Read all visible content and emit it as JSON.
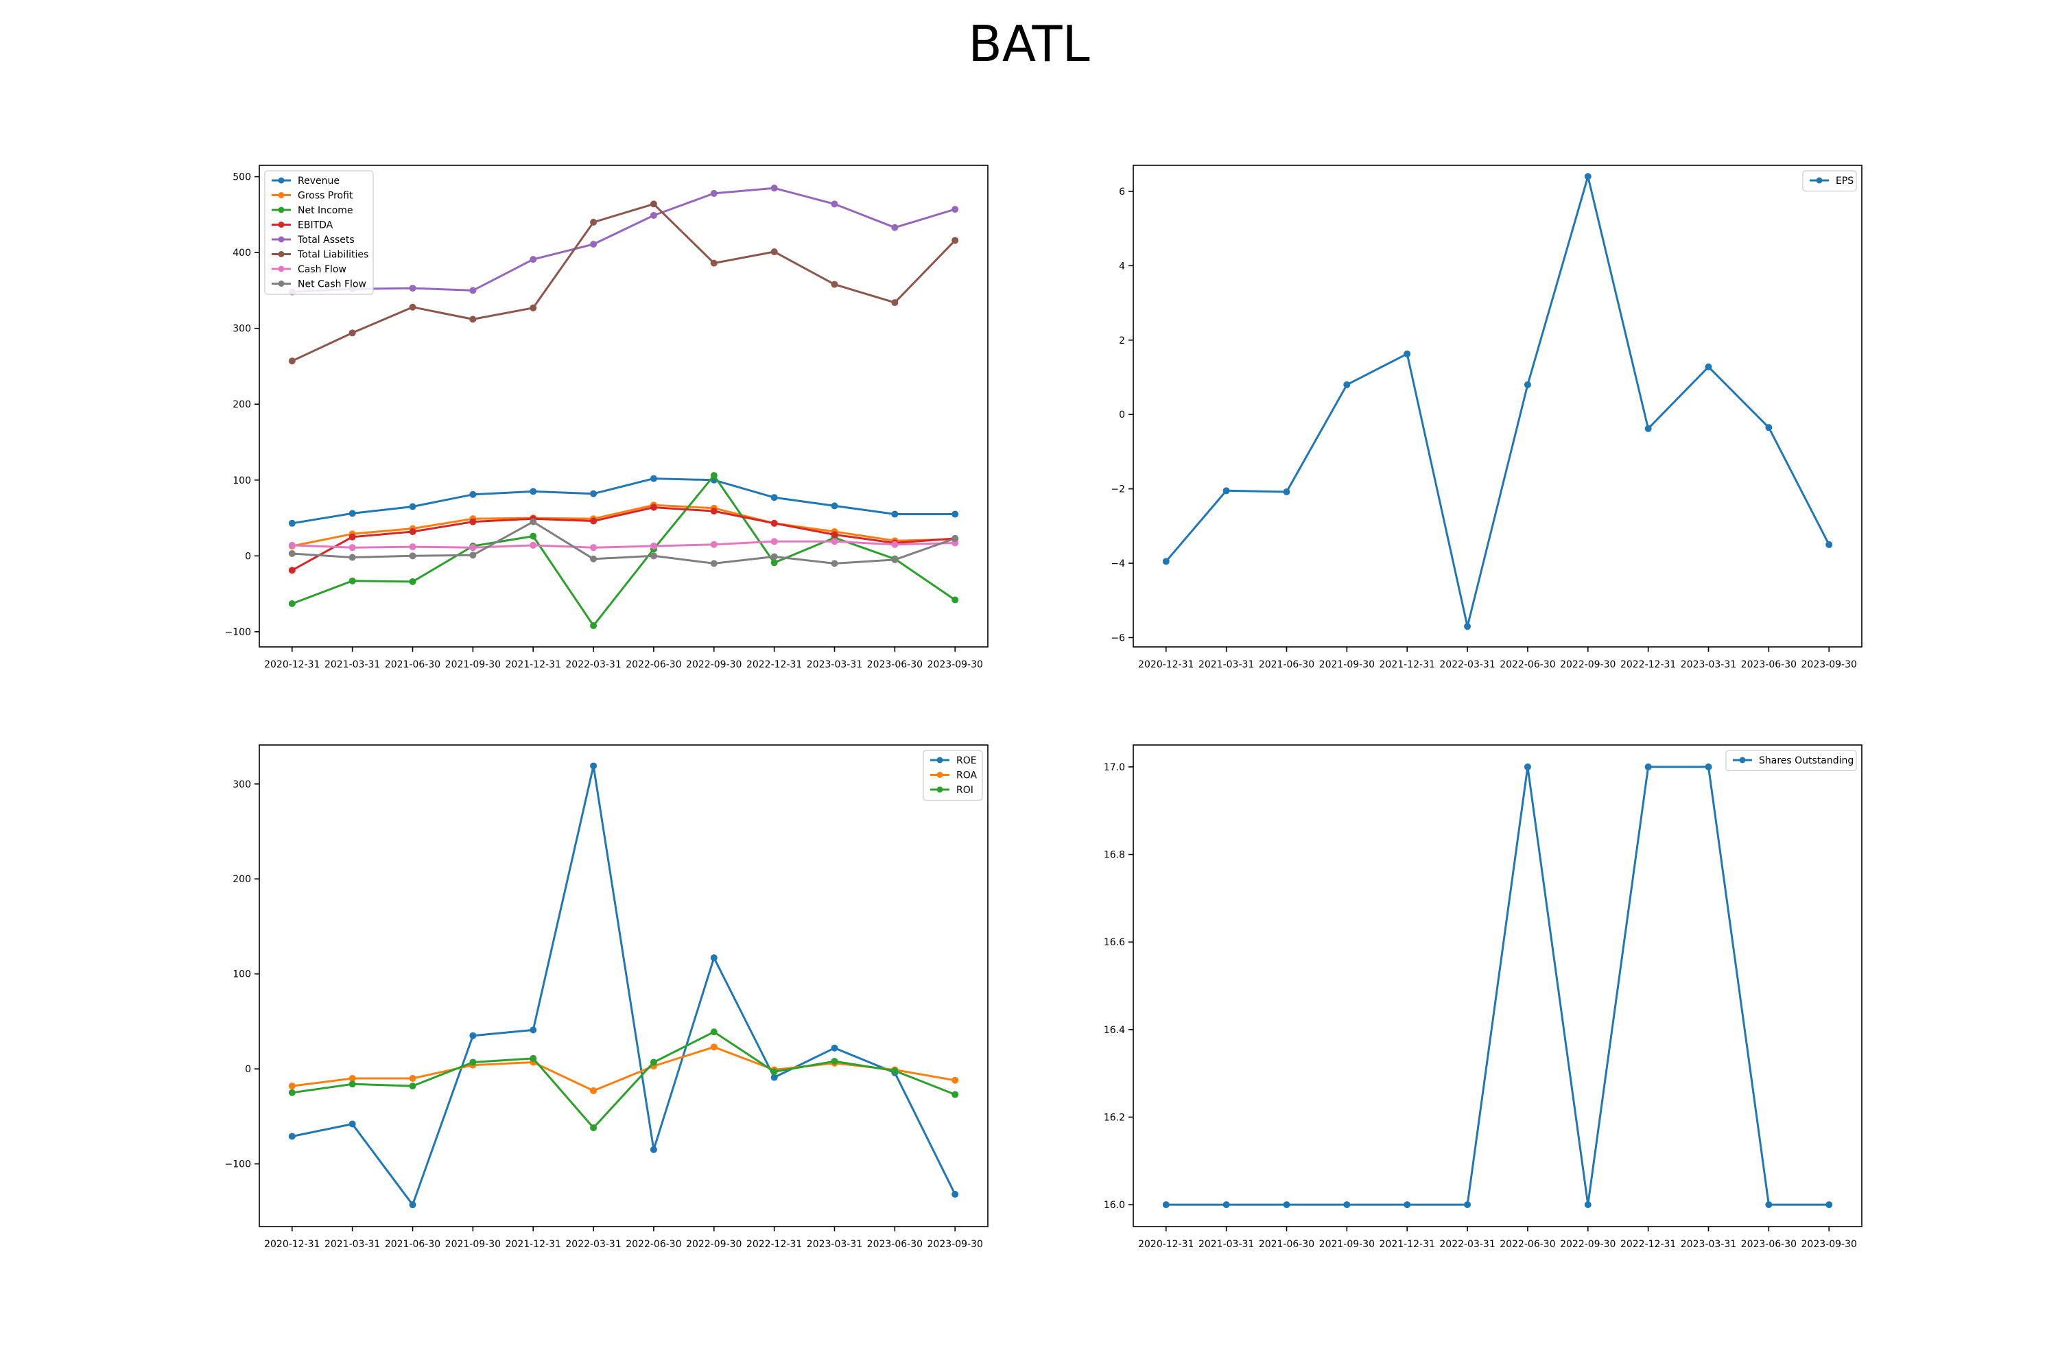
{
  "title": "BATL",
  "chart_data": [
    {
      "type": "line",
      "x": [
        "2020-12-31",
        "2021-03-31",
        "2021-06-30",
        "2021-09-30",
        "2021-12-31",
        "2022-03-31",
        "2022-06-30",
        "2022-09-30",
        "2022-12-31",
        "2023-03-31",
        "2023-06-30",
        "2023-09-30"
      ],
      "ylim": [
        -120,
        515
      ],
      "yticks": [
        -100,
        0,
        100,
        200,
        300,
        400,
        500
      ],
      "ytick_labels": [
        "−100",
        "0",
        "100",
        "200",
        "300",
        "400",
        "500"
      ],
      "legend_position": "upper-left",
      "series": [
        {
          "name": "Revenue",
          "color": "#1f77b4",
          "values": [
            43,
            56,
            65,
            81,
            85,
            82,
            102,
            100,
            77,
            66,
            55,
            55
          ]
        },
        {
          "name": "Gross Profit",
          "color": "#ff7f0e",
          "values": [
            13,
            29,
            36,
            49,
            50,
            49,
            67,
            63,
            43,
            32,
            20,
            22
          ]
        },
        {
          "name": "Net Income",
          "color": "#2ca02c",
          "values": [
            -63,
            -33,
            -34,
            13,
            26,
            -92,
            9,
            106,
            -9,
            24,
            -4,
            -58
          ]
        },
        {
          "name": "EBITDA",
          "color": "#d62728",
          "values": [
            -19,
            25,
            32,
            45,
            49,
            46,
            64,
            59,
            43,
            28,
            17,
            23
          ]
        },
        {
          "name": "Total Assets",
          "color": "#9467bd",
          "values": [
            348,
            352,
            353,
            350,
            391,
            411,
            449,
            478,
            485,
            464,
            433,
            457
          ]
        },
        {
          "name": "Total Liabilities",
          "color": "#8c564b",
          "values": [
            257,
            294,
            328,
            312,
            327,
            440,
            464,
            386,
            401,
            358,
            334,
            416
          ]
        },
        {
          "name": "Cash Flow",
          "color": "#e377c2",
          "values": [
            14,
            11,
            12,
            11,
            14,
            11,
            13,
            15,
            19,
            19,
            15,
            17
          ]
        },
        {
          "name": "Net Cash Flow",
          "color": "#7f7f7f",
          "values": [
            3,
            -2,
            0,
            1,
            45,
            -4,
            0,
            -10,
            -1,
            -10,
            -5,
            23
          ]
        }
      ]
    },
    {
      "type": "line",
      "x": [
        "2020-12-31",
        "2021-03-31",
        "2021-06-30",
        "2021-09-30",
        "2021-12-31",
        "2022-03-31",
        "2022-06-30",
        "2022-09-30",
        "2022-12-31",
        "2023-03-31",
        "2023-06-30",
        "2023-09-30"
      ],
      "ylim": [
        -6.25,
        6.7
      ],
      "yticks": [
        -6,
        -4,
        -2,
        0,
        2,
        4,
        6
      ],
      "ytick_labels": [
        "−6",
        "−4",
        "−2",
        "0",
        "2",
        "4",
        "6"
      ],
      "legend_position": "upper-right",
      "series": [
        {
          "name": "EPS",
          "color": "#1f77b4",
          "values": [
            -3.95,
            -2.05,
            -2.08,
            0.8,
            1.63,
            -5.7,
            0.8,
            6.4,
            -0.38,
            1.28,
            -0.35,
            -3.5
          ]
        }
      ]
    },
    {
      "type": "line",
      "x": [
        "2020-12-31",
        "2021-03-31",
        "2021-06-30",
        "2021-09-30",
        "2021-12-31",
        "2022-03-31",
        "2022-06-30",
        "2022-09-30",
        "2022-12-31",
        "2023-03-31",
        "2023-06-30",
        "2023-09-30"
      ],
      "ylim": [
        -166,
        341
      ],
      "yticks": [
        -100,
        0,
        100,
        200,
        300
      ],
      "ytick_labels": [
        "−100",
        "0",
        "100",
        "200",
        "300"
      ],
      "legend_position": "upper-right",
      "series": [
        {
          "name": "ROE",
          "color": "#1f77b4",
          "values": [
            -71,
            -58,
            -143,
            35,
            41,
            319,
            -85,
            117,
            -9,
            22,
            -4,
            -132
          ]
        },
        {
          "name": "ROA",
          "color": "#ff7f0e",
          "values": [
            -18,
            -10,
            -10,
            4,
            7,
            -23,
            3,
            23,
            -1,
            6,
            -1,
            -12
          ]
        },
        {
          "name": "ROI",
          "color": "#2ca02c",
          "values": [
            -25,
            -16,
            -18,
            7,
            11,
            -62,
            7,
            39,
            -3,
            8,
            -2,
            -27
          ]
        }
      ]
    },
    {
      "type": "line",
      "x": [
        "2020-12-31",
        "2021-03-31",
        "2021-06-30",
        "2021-09-30",
        "2021-12-31",
        "2022-03-31",
        "2022-06-30",
        "2022-09-30",
        "2022-12-31",
        "2023-03-31",
        "2023-06-30",
        "2023-09-30"
      ],
      "ylim": [
        15.95,
        17.05
      ],
      "yticks": [
        16.0,
        16.2,
        16.4,
        16.6,
        16.8,
        17.0
      ],
      "ytick_labels": [
        "16.0",
        "16.2",
        "16.4",
        "16.6",
        "16.8",
        "17.0"
      ],
      "legend_position": "upper-right",
      "series": [
        {
          "name": "Shares Outstanding",
          "color": "#1f77b4",
          "values": [
            16,
            16,
            16,
            16,
            16,
            16,
            17,
            16,
            17,
            17,
            16,
            16
          ]
        }
      ]
    }
  ]
}
